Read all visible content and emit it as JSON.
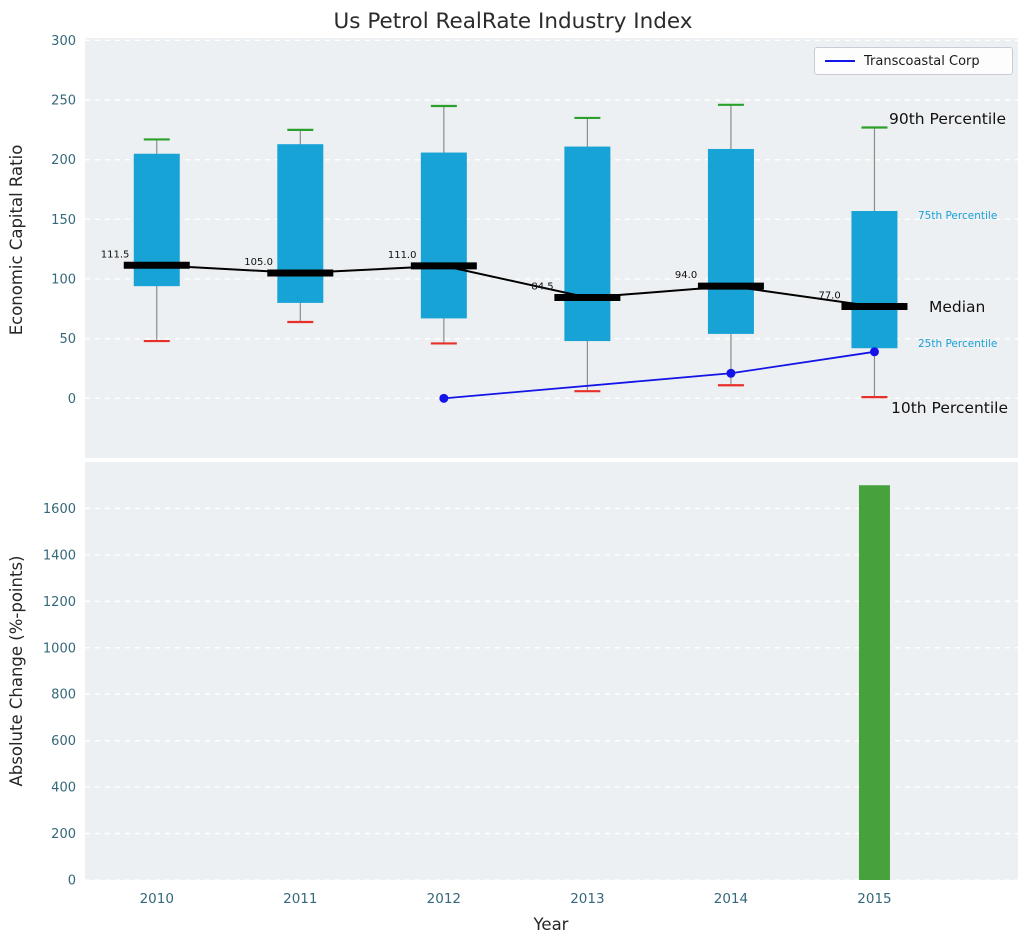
{
  "title": "Us Petrol RealRate Industry Index",
  "legend": {
    "entries": [
      {
        "label": "Transcoastal Corp",
        "color": "#1414e8"
      }
    ]
  },
  "annotations": {
    "p90_label": "90th Percentile",
    "p75_label": "75th Percentile",
    "median_label": "Median",
    "p25_label": "25th Percentile",
    "p10_label": "10th Percentile"
  },
  "colors": {
    "box_fill": "#17a3d6",
    "whisker": "#8c8c8c",
    "cap_high": "#2ca02c",
    "cap_low": "#e8302a",
    "median_line": "#000000",
    "company_line": "#1414e8",
    "bar_fill": "#47a23e",
    "plot_background": "#edf0f2",
    "grid": "#ffffff",
    "tick_text": "#35687a",
    "median_label_text": "#111111"
  },
  "chart_data": [
    {
      "type": "box",
      "title": "Us Petrol RealRate Industry Index",
      "ylabel": "Economic Capital Ratio",
      "categories": [
        "2010",
        "2011",
        "2012",
        "2013",
        "2014",
        "2015"
      ],
      "ylim": [
        -50,
        302
      ],
      "yticks": [
        0,
        50,
        100,
        150,
        200,
        250,
        300
      ],
      "grid": true,
      "legend_position": "upper right",
      "series": {
        "p90": [
          217,
          225,
          245,
          235,
          246,
          227
        ],
        "p75": [
          205,
          213,
          206,
          211,
          209,
          157
        ],
        "median": [
          111.5,
          105.0,
          111.0,
          84.5,
          94.0,
          77.0
        ],
        "p25": [
          94,
          80,
          67,
          48,
          54,
          42
        ],
        "p10": [
          48,
          64,
          46,
          6,
          11,
          1
        ]
      },
      "median_value_labels": [
        "111.5",
        "105.0",
        "111.0",
        "84.5",
        "94.0",
        "77.0"
      ],
      "company_series": {
        "name": "Transcoastal Corp",
        "x": [
          "2012",
          "2014",
          "2015"
        ],
        "y": [
          0,
          21,
          39
        ]
      }
    },
    {
      "type": "bar",
      "ylabel": "Absolute Change (%-points)",
      "xlabel": "Year",
      "categories": [
        "2010",
        "2011",
        "2012",
        "2013",
        "2014",
        "2015"
      ],
      "values": [
        null,
        null,
        null,
        null,
        null,
        1700
      ],
      "ylim": [
        0,
        1800
      ],
      "yticks": [
        0,
        200,
        400,
        600,
        800,
        1000,
        1200,
        1400,
        1600
      ],
      "grid": true
    }
  ]
}
